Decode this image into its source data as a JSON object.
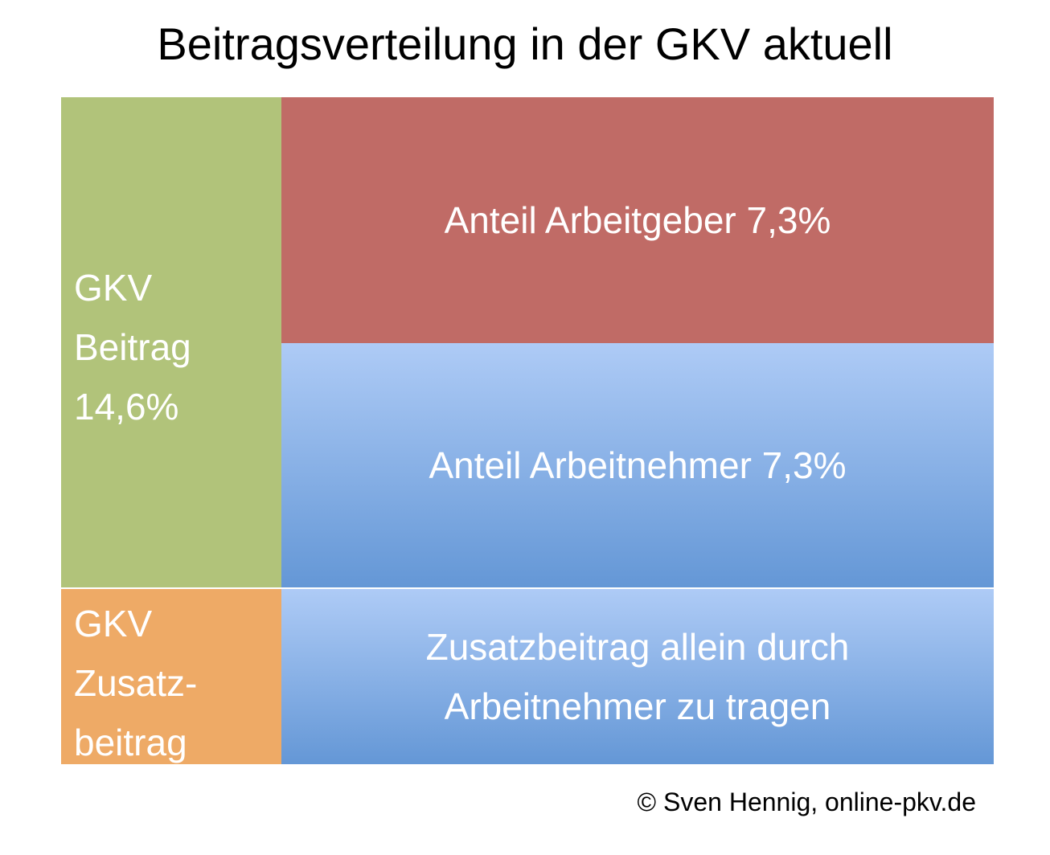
{
  "title": "Beitragsverteilung in der GKV aktuell",
  "boxes": [
    {
      "lines": [
        "GKV",
        "Beitrag",
        "14,6%"
      ]
    },
    {
      "lines": [
        "Anteil Arbeitgeber 7,3%"
      ]
    },
    {
      "lines": [
        "Anteil Arbeitnehmer 7,3%"
      ]
    },
    {
      "lines": [
        "GKV",
        "Zusatz-",
        "beitrag"
      ]
    },
    {
      "lines": [
        "Zusatzbeitrag allein durch",
        "Arbeitnehmer zu tragen"
      ]
    }
  ],
  "credit": "© Sven Hennig, online-pkv.de"
}
